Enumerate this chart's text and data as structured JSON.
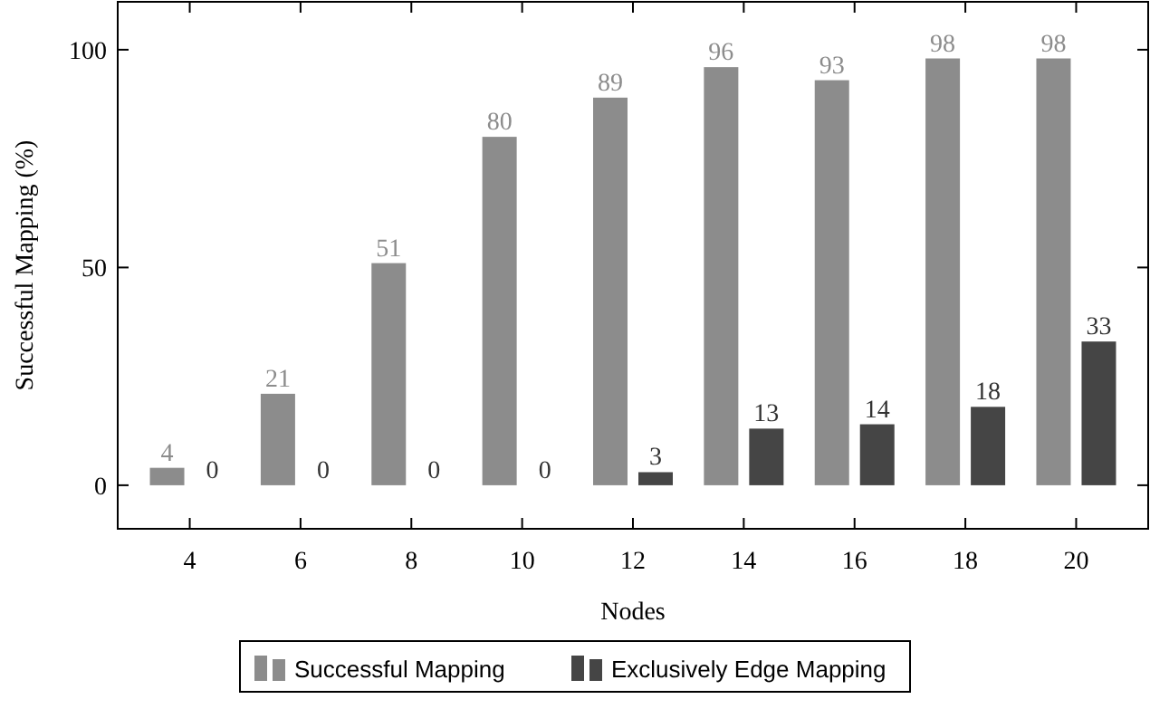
{
  "chart_data": {
    "type": "bar",
    "xlabel": "Nodes",
    "ylabel": "Successful Mapping (%)",
    "categories": [
      "4",
      "6",
      "8",
      "10",
      "12",
      "14",
      "16",
      "18",
      "20"
    ],
    "series": [
      {
        "name": "Successful Mapping",
        "color": "#8c8c8c",
        "values": [
          4,
          21,
          51,
          80,
          89,
          96,
          93,
          98,
          98
        ]
      },
      {
        "name": "Exclusively Edge Mapping",
        "color": "#454545",
        "values": [
          0,
          0,
          0,
          0,
          3,
          13,
          14,
          18,
          33
        ]
      }
    ],
    "ylim": [
      -10,
      111
    ],
    "yticks": [
      0,
      50,
      100
    ],
    "grid": false,
    "legend": "bottom",
    "data_labels": true
  }
}
